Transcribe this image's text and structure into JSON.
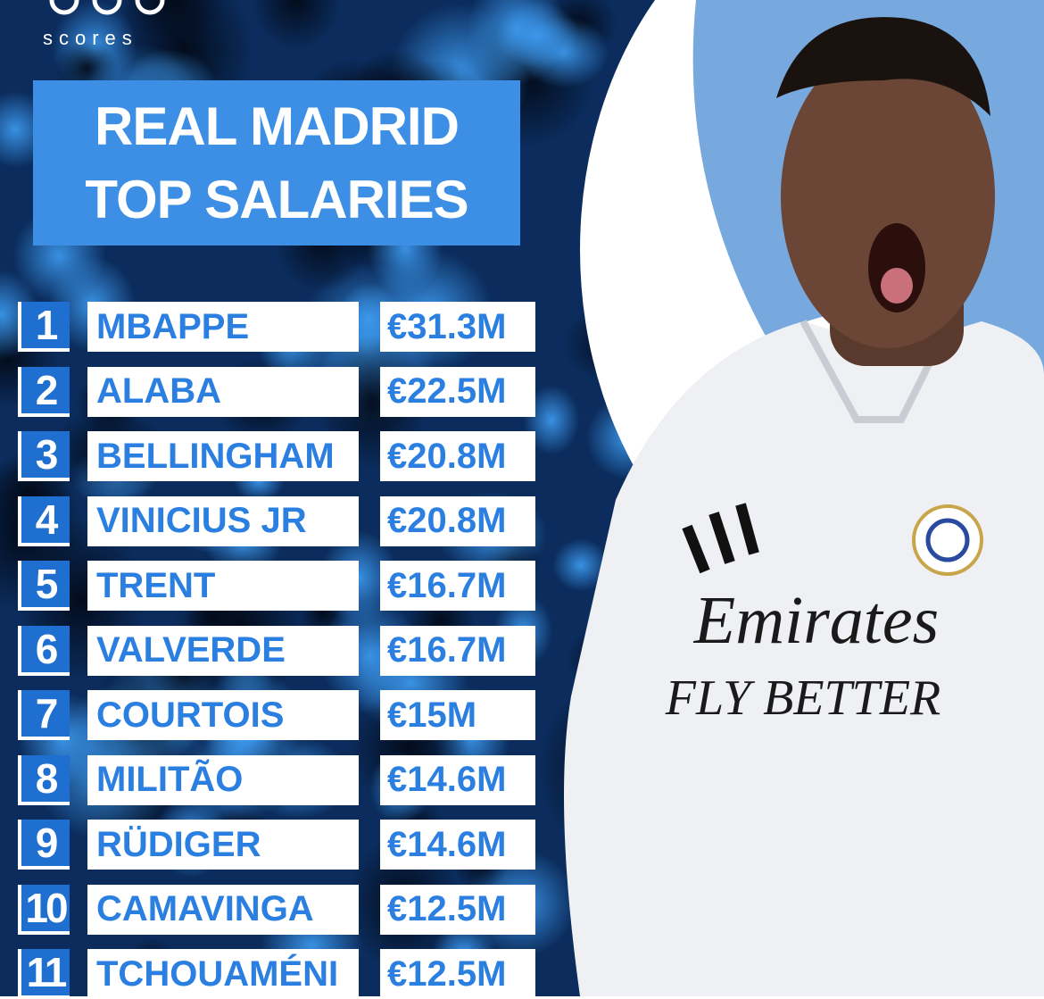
{
  "logo": {
    "text": "scores"
  },
  "header": {
    "title_lines": [
      "REAL MADRID",
      "TOP SALARIES"
    ]
  },
  "table": {
    "rows": [
      [
        "1",
        "MBAPPE",
        "€31.3M"
      ],
      [
        "2",
        "ALABA",
        "€22.5M"
      ],
      [
        "3",
        "BELLINGHAM",
        "€20.8M"
      ],
      [
        "4",
        "VINICIUS JR",
        "€20.8M"
      ],
      [
        "5",
        "TRENT",
        "€16.7M"
      ],
      [
        "6",
        "VALVERDE",
        "€16.7M"
      ],
      [
        "7",
        "COURTOIS",
        "€15M"
      ],
      [
        "8",
        "MILITÃO",
        "€14.6M"
      ],
      [
        "9",
        "RÜDIGER",
        "€14.6M"
      ],
      [
        "10",
        "CAMAVINGA",
        "€12.5M"
      ],
      [
        "11",
        "TCHOUAMÉNI",
        "€12.5M"
      ]
    ]
  },
  "photo": {
    "shirt_text": [
      "Emirates",
      "FLY BETTER"
    ]
  }
}
